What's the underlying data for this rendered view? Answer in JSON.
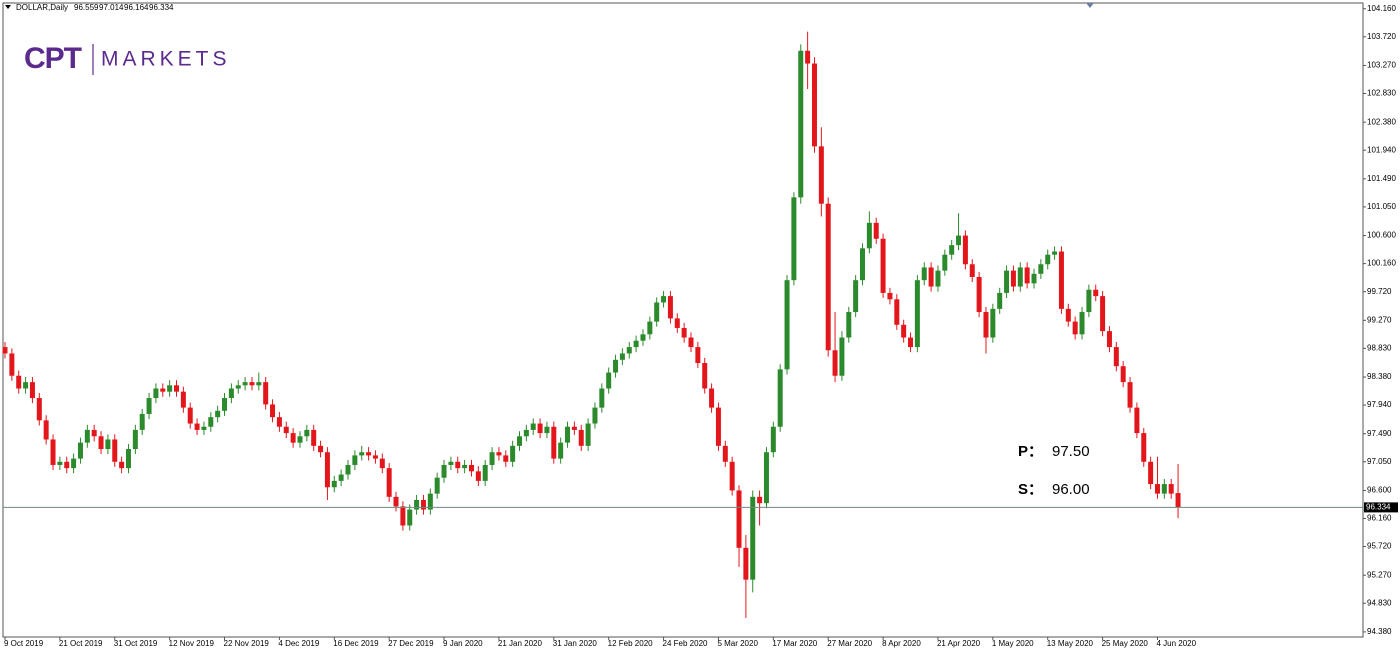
{
  "chart_data": {
    "type": "candlestick",
    "symbol": "DOLLAR,Daily",
    "logo": {
      "mark": "CPT",
      "text": "MARKETS"
    },
    "annotations": [
      {
        "label": "P：",
        "value": "97.50"
      },
      {
        "label": "S：",
        "value": "96.00"
      }
    ],
    "up_color": "#2b8a2b",
    "down_color": "#e3161c",
    "ylim": [
      94.3,
      104.25
    ],
    "yticks": [
      {
        "value": 104.16,
        "label": "104.160"
      },
      {
        "value": 103.72,
        "label": "103.720"
      },
      {
        "value": 103.27,
        "label": "103.270"
      },
      {
        "value": 102.83,
        "label": "102.830"
      },
      {
        "value": 102.38,
        "label": "102.380"
      },
      {
        "value": 101.94,
        "label": "101.940"
      },
      {
        "value": 101.49,
        "label": "101.490"
      },
      {
        "value": 101.05,
        "label": "101.050"
      },
      {
        "value": 100.6,
        "label": "100.600"
      },
      {
        "value": 100.16,
        "label": "100.160"
      },
      {
        "value": 99.72,
        "label": "99.720"
      },
      {
        "value": 99.27,
        "label": "99.270"
      },
      {
        "value": 98.83,
        "label": "98.830"
      },
      {
        "value": 98.38,
        "label": "98.380"
      },
      {
        "value": 97.94,
        "label": "97.940"
      },
      {
        "value": 97.49,
        "label": "97.490"
      },
      {
        "value": 97.05,
        "label": "97.050"
      },
      {
        "value": 96.6,
        "label": "96.600"
      },
      {
        "value": 96.16,
        "label": "96.160"
      },
      {
        "value": 95.72,
        "label": "95.720"
      },
      {
        "value": 95.27,
        "label": "95.270"
      },
      {
        "value": 94.83,
        "label": "94.830"
      },
      {
        "value": 94.38,
        "label": "94.380"
      }
    ],
    "categories": [
      "9 Oct 2019",
      null,
      null,
      null,
      null,
      null,
      null,
      null,
      "21 Oct 2019",
      null,
      null,
      null,
      null,
      null,
      null,
      null,
      "31 Oct 2019",
      null,
      null,
      null,
      null,
      null,
      null,
      null,
      "12 Nov 2019",
      null,
      null,
      null,
      null,
      null,
      null,
      null,
      "22 Nov 2019",
      null,
      null,
      null,
      null,
      null,
      null,
      null,
      "4 Dec 2019",
      null,
      null,
      null,
      null,
      null,
      null,
      null,
      "16 Dec 2019",
      null,
      null,
      null,
      null,
      null,
      null,
      null,
      "27 Dec 2019",
      null,
      null,
      null,
      null,
      null,
      null,
      null,
      "9 Jan 2020",
      null,
      null,
      null,
      null,
      null,
      null,
      null,
      "21 Jan 2020",
      null,
      null,
      null,
      null,
      null,
      null,
      null,
      "31 Jan 2020",
      null,
      null,
      null,
      null,
      null,
      null,
      null,
      "12 Feb 2020",
      null,
      null,
      null,
      null,
      null,
      null,
      null,
      "24 Feb 2020",
      null,
      null,
      null,
      null,
      null,
      null,
      null,
      "5 Mar 2020",
      null,
      null,
      null,
      null,
      null,
      null,
      null,
      "17 Mar 2020",
      null,
      null,
      null,
      null,
      null,
      null,
      null,
      "27 Mar 2020",
      null,
      null,
      null,
      null,
      null,
      null,
      null,
      "8 Apr 2020",
      null,
      null,
      null,
      null,
      null,
      null,
      null,
      "21 Apr 2020",
      null,
      null,
      null,
      null,
      null,
      null,
      null,
      "1 May 2020",
      null,
      null,
      null,
      null,
      null,
      null,
      null,
      "13 May 2020",
      null,
      null,
      null,
      null,
      null,
      null,
      null,
      "25 May 2020",
      null,
      null,
      null,
      null,
      null,
      null,
      null,
      "4 Jun 2020",
      null,
      null,
      null
    ],
    "ohlc": [
      [
        98.85,
        98.93,
        98.67,
        98.75
      ],
      [
        98.75,
        98.83,
        98.32,
        98.4
      ],
      [
        98.4,
        98.48,
        98.12,
        98.2
      ],
      [
        98.2,
        98.38,
        98.12,
        98.3
      ],
      [
        98.3,
        98.38,
        97.97,
        98.05
      ],
      [
        98.05,
        98.13,
        97.62,
        97.7
      ],
      [
        97.7,
        97.78,
        97.32,
        97.4
      ],
      [
        97.4,
        97.48,
        96.92,
        97.0
      ],
      [
        97.0,
        97.13,
        96.92,
        97.05
      ],
      [
        97.05,
        97.13,
        96.87,
        96.95
      ],
      [
        96.95,
        97.18,
        96.87,
        97.1
      ],
      [
        97.1,
        97.43,
        97.02,
        97.35
      ],
      [
        97.35,
        97.63,
        97.27,
        97.55
      ],
      [
        97.55,
        97.63,
        97.37,
        97.45
      ],
      [
        97.45,
        97.53,
        97.17,
        97.25
      ],
      [
        97.25,
        97.48,
        97.17,
        97.4
      ],
      [
        97.4,
        97.48,
        96.97,
        97.05
      ],
      [
        97.05,
        97.13,
        96.87,
        96.95
      ],
      [
        96.95,
        97.33,
        96.87,
        97.25
      ],
      [
        97.25,
        97.63,
        97.17,
        97.55
      ],
      [
        97.55,
        97.88,
        97.47,
        97.8
      ],
      [
        97.8,
        98.13,
        97.72,
        98.05
      ],
      [
        98.05,
        98.28,
        97.97,
        98.2
      ],
      [
        98.2,
        98.28,
        98.07,
        98.15
      ],
      [
        98.15,
        98.33,
        98.07,
        98.25
      ],
      [
        98.25,
        98.33,
        98.07,
        98.15
      ],
      [
        98.15,
        98.23,
        97.82,
        97.9
      ],
      [
        97.9,
        97.98,
        97.57,
        97.65
      ],
      [
        97.65,
        97.73,
        97.47,
        97.55
      ],
      [
        97.55,
        97.68,
        97.47,
        97.6
      ],
      [
        97.6,
        97.83,
        97.52,
        97.75
      ],
      [
        97.75,
        97.93,
        97.67,
        97.85
      ],
      [
        97.85,
        98.13,
        97.77,
        98.05
      ],
      [
        98.05,
        98.28,
        97.97,
        98.2
      ],
      [
        98.2,
        98.33,
        98.12,
        98.25
      ],
      [
        98.25,
        98.38,
        98.17,
        98.3
      ],
      [
        98.3,
        98.38,
        98.17,
        98.25
      ],
      [
        98.25,
        98.45,
        98.17,
        98.3
      ],
      [
        98.3,
        98.38,
        97.87,
        97.95
      ],
      [
        97.95,
        98.03,
        97.67,
        97.75
      ],
      [
        97.75,
        97.83,
        97.52,
        97.6
      ],
      [
        97.6,
        97.68,
        97.42,
        97.5
      ],
      [
        97.5,
        97.58,
        97.27,
        97.35
      ],
      [
        97.35,
        97.53,
        97.27,
        97.45
      ],
      [
        97.45,
        97.63,
        97.37,
        97.55
      ],
      [
        97.55,
        97.63,
        97.22,
        97.3
      ],
      [
        97.3,
        97.38,
        97.12,
        97.2
      ],
      [
        97.2,
        97.28,
        96.45,
        96.65
      ],
      [
        96.65,
        96.83,
        96.57,
        96.75
      ],
      [
        96.75,
        96.93,
        96.67,
        96.85
      ],
      [
        96.85,
        97.08,
        96.77,
        97.0
      ],
      [
        97.0,
        97.23,
        96.92,
        97.15
      ],
      [
        97.15,
        97.3,
        97.07,
        97.2
      ],
      [
        97.2,
        97.28,
        97.07,
        97.15
      ],
      [
        97.15,
        97.23,
        97.02,
        97.1
      ],
      [
        97.1,
        97.18,
        96.87,
        96.95
      ],
      [
        96.95,
        97.03,
        96.42,
        96.5
      ],
      [
        96.5,
        96.58,
        96.27,
        96.35
      ],
      [
        96.35,
        96.43,
        95.97,
        96.05
      ],
      [
        96.05,
        96.38,
        95.97,
        96.3
      ],
      [
        96.3,
        96.53,
        96.22,
        96.45
      ],
      [
        96.45,
        96.53,
        96.22,
        96.3
      ],
      [
        96.3,
        96.63,
        96.22,
        96.55
      ],
      [
        96.55,
        96.88,
        96.47,
        96.8
      ],
      [
        96.8,
        97.08,
        96.72,
        97.0
      ],
      [
        97.0,
        97.13,
        96.92,
        97.05
      ],
      [
        97.05,
        97.13,
        96.87,
        96.95
      ],
      [
        96.95,
        97.08,
        96.87,
        97.0
      ],
      [
        97.0,
        97.08,
        96.82,
        96.9
      ],
      [
        96.9,
        96.98,
        96.67,
        96.75
      ],
      [
        96.75,
        97.08,
        96.67,
        97.0
      ],
      [
        97.0,
        97.28,
        96.92,
        97.2
      ],
      [
        97.2,
        97.28,
        97.07,
        97.15
      ],
      [
        97.15,
        97.23,
        96.97,
        97.05
      ],
      [
        97.05,
        97.38,
        96.97,
        97.3
      ],
      [
        97.3,
        97.53,
        97.22,
        97.45
      ],
      [
        97.45,
        97.63,
        97.37,
        97.55
      ],
      [
        97.55,
        97.73,
        97.47,
        97.65
      ],
      [
        97.65,
        97.73,
        97.42,
        97.5
      ],
      [
        97.5,
        97.68,
        97.42,
        97.6
      ],
      [
        97.6,
        97.68,
        97.02,
        97.1
      ],
      [
        97.1,
        97.43,
        97.02,
        97.35
      ],
      [
        97.35,
        97.68,
        97.27,
        97.6
      ],
      [
        97.6,
        97.68,
        97.47,
        97.55
      ],
      [
        97.55,
        97.63,
        97.22,
        97.3
      ],
      [
        97.3,
        97.73,
        97.22,
        97.65
      ],
      [
        97.65,
        97.98,
        97.57,
        97.9
      ],
      [
        97.9,
        98.28,
        97.82,
        98.2
      ],
      [
        98.2,
        98.53,
        98.12,
        98.45
      ],
      [
        98.45,
        98.73,
        98.37,
        98.65
      ],
      [
        98.65,
        98.83,
        98.57,
        98.75
      ],
      [
        98.75,
        98.93,
        98.67,
        98.85
      ],
      [
        98.85,
        99.03,
        98.77,
        98.95
      ],
      [
        98.95,
        99.13,
        98.87,
        99.05
      ],
      [
        99.05,
        99.33,
        98.97,
        99.25
      ],
      [
        99.25,
        99.63,
        99.17,
        99.55
      ],
      [
        99.55,
        99.73,
        99.47,
        99.65
      ],
      [
        99.65,
        99.73,
        99.22,
        99.3
      ],
      [
        99.3,
        99.38,
        99.07,
        99.15
      ],
      [
        99.15,
        99.23,
        98.92,
        99.0
      ],
      [
        99.0,
        99.08,
        98.77,
        98.85
      ],
      [
        98.85,
        98.93,
        98.52,
        98.6
      ],
      [
        98.6,
        98.68,
        98.12,
        98.2
      ],
      [
        98.2,
        98.28,
        97.82,
        97.9
      ],
      [
        97.9,
        97.98,
        97.22,
        97.3
      ],
      [
        97.3,
        97.38,
        96.97,
        97.05
      ],
      [
        97.05,
        97.13,
        96.52,
        96.6
      ],
      [
        96.6,
        96.68,
        95.4,
        95.7
      ],
      [
        95.7,
        95.9,
        94.6,
        95.2
      ],
      [
        95.2,
        96.6,
        95.0,
        96.5
      ],
      [
        96.5,
        96.6,
        96.05,
        96.4
      ],
      [
        96.4,
        97.28,
        96.32,
        97.2
      ],
      [
        97.2,
        97.68,
        97.12,
        97.6
      ],
      [
        97.6,
        98.58,
        97.52,
        98.5
      ],
      [
        98.5,
        99.98,
        98.42,
        99.9
      ],
      [
        99.9,
        101.28,
        99.82,
        101.2
      ],
      [
        101.2,
        103.6,
        101.1,
        103.5
      ],
      [
        103.5,
        103.8,
        102.9,
        103.3
      ],
      [
        103.3,
        103.4,
        101.9,
        102.0
      ],
      [
        102.0,
        102.3,
        100.9,
        101.1
      ],
      [
        101.1,
        101.2,
        98.7,
        98.8
      ],
      [
        98.8,
        99.4,
        98.3,
        98.4
      ],
      [
        98.4,
        99.1,
        98.32,
        99.0
      ],
      [
        99.0,
        99.48,
        98.92,
        99.4
      ],
      [
        99.4,
        99.98,
        99.32,
        99.9
      ],
      [
        99.9,
        100.48,
        99.82,
        100.4
      ],
      [
        100.4,
        100.98,
        100.32,
        100.8
      ],
      [
        100.8,
        100.88,
        100.47,
        100.55
      ],
      [
        100.55,
        100.63,
        99.62,
        99.7
      ],
      [
        99.7,
        99.78,
        99.52,
        99.6
      ],
      [
        99.6,
        99.68,
        99.12,
        99.2
      ],
      [
        99.2,
        99.28,
        98.92,
        99.0
      ],
      [
        99.0,
        99.08,
        98.77,
        98.85
      ],
      [
        98.85,
        99.98,
        98.77,
        99.9
      ],
      [
        99.9,
        100.18,
        99.82,
        100.1
      ],
      [
        100.1,
        100.18,
        99.72,
        99.8
      ],
      [
        99.8,
        100.13,
        99.72,
        100.05
      ],
      [
        100.05,
        100.38,
        99.97,
        100.3
      ],
      [
        100.3,
        100.53,
        100.22,
        100.45
      ],
      [
        100.45,
        100.95,
        100.37,
        100.6
      ],
      [
        100.6,
        100.68,
        100.07,
        100.15
      ],
      [
        100.15,
        100.23,
        99.87,
        99.95
      ],
      [
        99.95,
        100.03,
        99.32,
        99.4
      ],
      [
        99.4,
        99.48,
        98.75,
        99.0
      ],
      [
        99.0,
        99.53,
        98.92,
        99.45
      ],
      [
        99.45,
        99.78,
        99.37,
        99.7
      ],
      [
        99.7,
        100.13,
        99.62,
        100.05
      ],
      [
        100.05,
        100.13,
        99.72,
        99.8
      ],
      [
        99.8,
        100.18,
        99.72,
        100.1
      ],
      [
        100.1,
        100.18,
        99.77,
        99.85
      ],
      [
        99.85,
        100.08,
        99.77,
        100.0
      ],
      [
        100.0,
        100.23,
        99.92,
        100.15
      ],
      [
        100.15,
        100.38,
        100.07,
        100.3
      ],
      [
        100.3,
        100.43,
        100.22,
        100.35
      ],
      [
        100.35,
        100.43,
        99.37,
        99.45
      ],
      [
        99.45,
        99.53,
        99.17,
        99.25
      ],
      [
        99.25,
        99.33,
        98.97,
        99.05
      ],
      [
        99.05,
        99.48,
        98.97,
        99.4
      ],
      [
        99.4,
        99.83,
        99.32,
        99.75
      ],
      [
        99.75,
        99.83,
        99.57,
        99.65
      ],
      [
        99.65,
        99.73,
        99.02,
        99.1
      ],
      [
        99.1,
        99.18,
        98.77,
        98.85
      ],
      [
        98.85,
        98.93,
        98.47,
        98.55
      ],
      [
        98.55,
        98.63,
        98.22,
        98.3
      ],
      [
        98.3,
        98.38,
        97.82,
        97.9
      ],
      [
        97.9,
        97.98,
        97.42,
        97.5
      ],
      [
        97.5,
        97.58,
        96.97,
        97.05
      ],
      [
        97.05,
        97.13,
        96.62,
        96.7
      ],
      [
        96.7,
        97.13,
        96.47,
        96.55
      ],
      [
        96.55,
        96.78,
        96.47,
        96.7
      ],
      [
        96.7,
        96.78,
        96.47,
        96.55
      ],
      [
        96.559,
        97.014,
        96.164,
        96.334
      ]
    ]
  }
}
